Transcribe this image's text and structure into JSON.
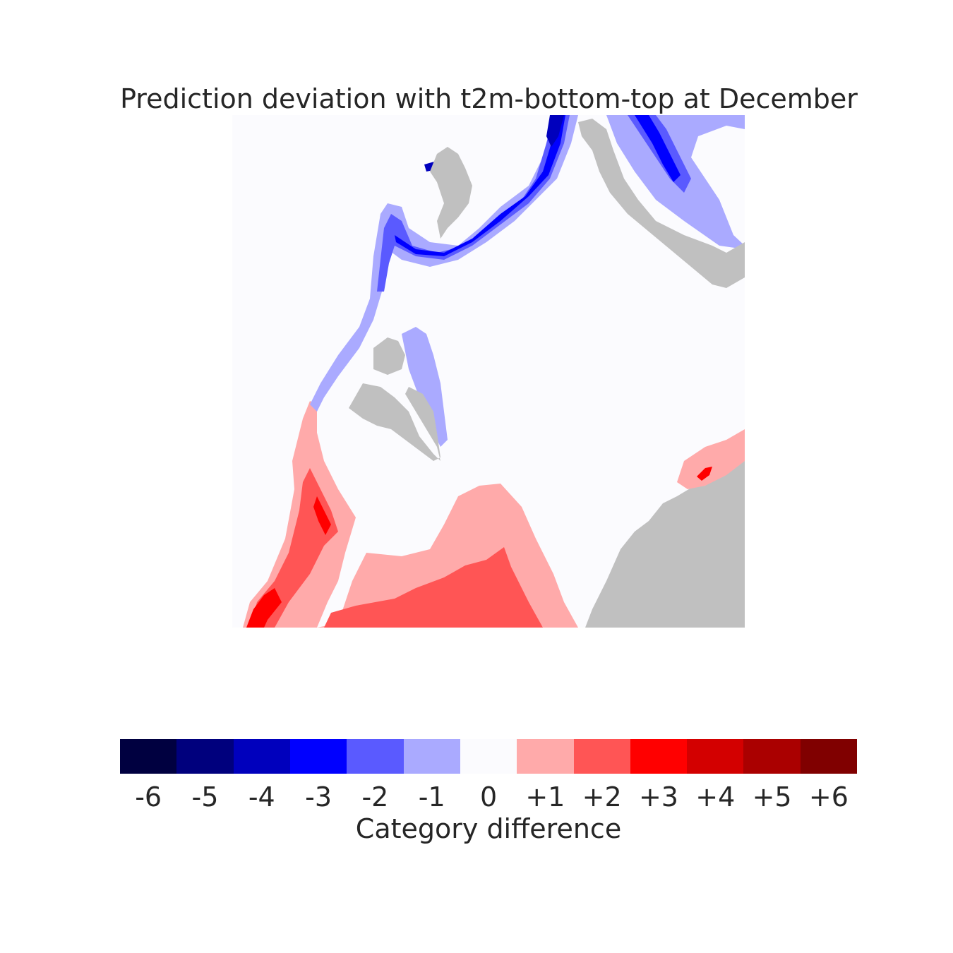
{
  "title": "Prediction deviation with t2m-bottom-top at December",
  "colors": {
    "background": "#fbfbfe",
    "land": "#c0c0c0",
    "levels": {
      "-6": "#000040",
      "-5": "#00007d",
      "-4": "#0000bd",
      "-3": "#0000ff",
      "-2": "#5a5aff",
      "-1": "#aaaaff",
      "0": "#fbfbfe",
      "+1": "#ffaaaa",
      "+2": "#ff5555",
      "+3": "#ff0000",
      "+4": "#d30000",
      "+5": "#aa0000",
      "+6": "#800000"
    }
  },
  "colorbar": {
    "label": "Category difference",
    "ticks": [
      "-6",
      "-5",
      "-4",
      "-3",
      "-2",
      "-1",
      "0",
      "+1",
      "+2",
      "+3",
      "+4",
      "+5",
      "+6"
    ],
    "colors": [
      "#000040",
      "#00007d",
      "#0000bd",
      "#0000ff",
      "#5a5aff",
      "#aaaaff",
      "#fbfbfe",
      "#ffaaaa",
      "#ff5555",
      "#ff0000",
      "#d30000",
      "#aa0000",
      "#800000"
    ]
  }
}
